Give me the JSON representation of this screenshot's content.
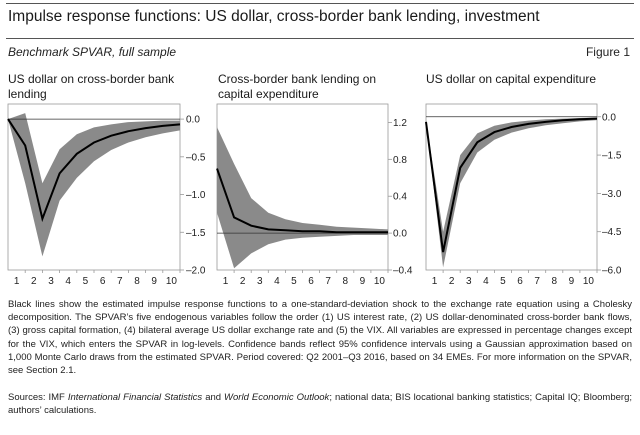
{
  "header": {
    "title": "Impulse response functions: US dollar, cross-border bank lending, investment",
    "subtitle": "Benchmark SPVAR, full sample",
    "figure_label": "Figure 1"
  },
  "colors": {
    "band": "#8a8a8a",
    "line": "#000000",
    "frame": "#999999",
    "zero": "#333333"
  },
  "chart_data": [
    {
      "type": "line",
      "title": "US dollar on cross-border bank lending",
      "categories": [
        "1",
        "2",
        "3",
        "4",
        "5",
        "6",
        "7",
        "8",
        "9",
        "10"
      ],
      "x": [
        0,
        1,
        2,
        3,
        4,
        5,
        6,
        7,
        8,
        9,
        10
      ],
      "y_ticks": [
        "0.0",
        "–0.5",
        "–1.0",
        "–1.5",
        "–2.0"
      ],
      "y_tick_values": [
        0,
        -0.5,
        -1.0,
        -1.5,
        -2.0
      ],
      "ylim": [
        -2.0,
        0.2
      ],
      "line": [
        0,
        -0.35,
        -1.32,
        -0.72,
        -0.46,
        -0.31,
        -0.22,
        -0.16,
        -0.12,
        -0.09,
        -0.07
      ],
      "upper": [
        0,
        0.08,
        -0.85,
        -0.4,
        -0.2,
        -0.11,
        -0.07,
        -0.04,
        -0.03,
        -0.02,
        -0.02
      ],
      "lower": [
        0,
        -0.85,
        -1.82,
        -1.08,
        -0.78,
        -0.56,
        -0.41,
        -0.31,
        -0.24,
        -0.19,
        -0.15
      ]
    },
    {
      "type": "line",
      "title": "Cross-border bank lending on capital expenditure",
      "categories": [
        "1",
        "2",
        "3",
        "4",
        "5",
        "6",
        "7",
        "8",
        "9",
        "10"
      ],
      "x": [
        0,
        1,
        2,
        3,
        4,
        5,
        6,
        7,
        8,
        9,
        10
      ],
      "y_ticks": [
        "1.2",
        "0.8",
        "0.4",
        "0.0",
        "–0.4"
      ],
      "y_tick_values": [
        1.2,
        0.8,
        0.4,
        0.0,
        -0.4
      ],
      "ylim": [
        -0.4,
        1.4
      ],
      "line": [
        0.7,
        0.17,
        0.08,
        0.04,
        0.03,
        0.02,
        0.02,
        0.01,
        0.01,
        0.01,
        0.01
      ],
      "upper": [
        1.15,
        0.75,
        0.38,
        0.22,
        0.15,
        0.11,
        0.09,
        0.07,
        0.06,
        0.05,
        0.04
      ],
      "lower": [
        0.22,
        -0.38,
        -0.22,
        -0.12,
        -0.07,
        -0.05,
        -0.04,
        -0.03,
        -0.02,
        -0.02,
        -0.02
      ]
    },
    {
      "type": "line",
      "title": "US dollar on capital expenditure",
      "categories": [
        "1",
        "2",
        "3",
        "4",
        "5",
        "6",
        "7",
        "8",
        "9",
        "10"
      ],
      "x": [
        0,
        1,
        2,
        3,
        4,
        5,
        6,
        7,
        8,
        9,
        10
      ],
      "y_ticks": [
        "0.0",
        "–1.5",
        "–3.0",
        "–4.5",
        "–6.0"
      ],
      "y_tick_values": [
        0,
        -1.5,
        -3.0,
        -4.5,
        -6.0
      ],
      "ylim": [
        -6.0,
        0.5
      ],
      "line": [
        -0.2,
        -5.3,
        -2.0,
        -1.0,
        -0.6,
        -0.4,
        -0.28,
        -0.2,
        -0.14,
        -0.1,
        -0.07
      ],
      "upper": [
        -0.15,
        -4.5,
        -1.5,
        -0.65,
        -0.35,
        -0.22,
        -0.15,
        -0.1,
        -0.07,
        -0.05,
        -0.03
      ],
      "lower": [
        -0.25,
        -5.9,
        -2.6,
        -1.4,
        -0.9,
        -0.62,
        -0.45,
        -0.33,
        -0.25,
        -0.18,
        -0.13
      ]
    }
  ],
  "notes": "Black lines show the estimated impulse response functions to a one-standard-deviation shock to the exchange rate equation using a Cholesky decomposition. The SPVAR’s five endogenous variables follow the order (1) US interest rate, (2) US dollar-denominated cross-border bank flows, (3) gross capital formation, (4) bilateral average US dollar exchange rate and (5) the VIX. All variables are expressed in percentage changes except for the VIX, which enters the SPVAR in log-levels. Confidence bands reflect 95% confidence intervals using a Gaussian approximation based on 1,000 Monte Carlo draws from the estimated SPVAR. Period covered: Q2 2001–Q3 2016, based on 34 EMEs. For more information on the SPVAR, see Section 2.1.",
  "sources": {
    "prefix": "Sources: IMF ",
    "ifs": "International Financial Statistics",
    "and": " and ",
    "weo": "World Economic Outlook",
    "suffix": "; national data; BIS locational banking statistics; Capital IQ; Bloomberg; authors’ calculations."
  }
}
